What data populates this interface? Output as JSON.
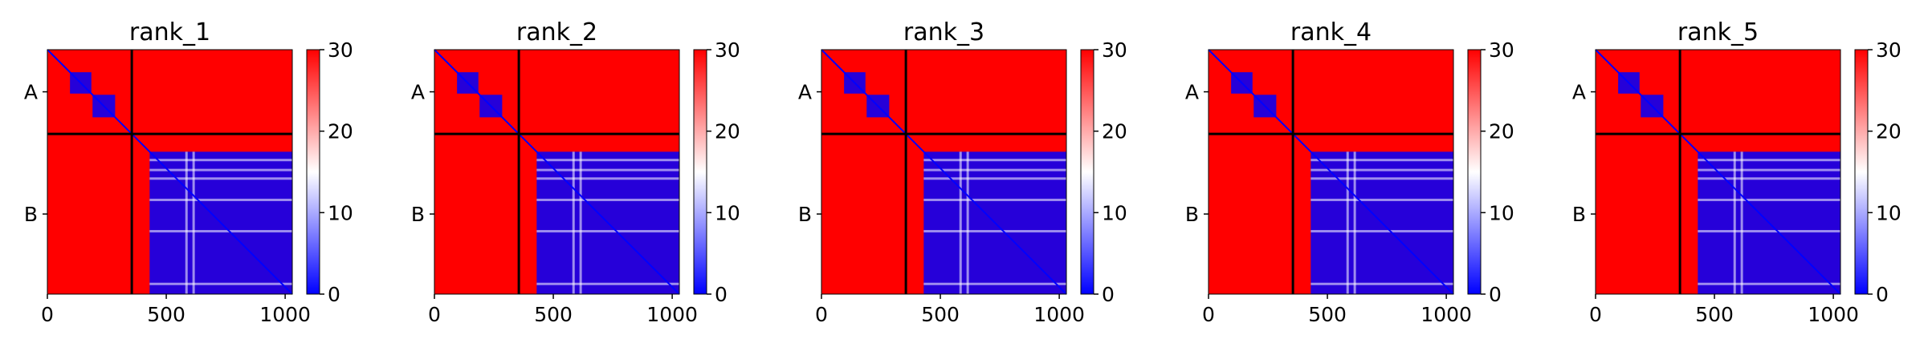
{
  "colors": {
    "low": "#0000ff",
    "mid": "#ffffff",
    "high": "#ff0000",
    "divider": "#000000"
  },
  "panels": [
    {
      "title": "rank_1"
    },
    {
      "title": "rank_2"
    },
    {
      "title": "rank_3"
    },
    {
      "title": "rank_4"
    },
    {
      "title": "rank_5"
    }
  ],
  "chart_data": {
    "type": "heatmap",
    "description_of_value": "PAE-style matrix, colormap bwr",
    "x_ticks": [
      0,
      500,
      1000
    ],
    "y_tick_labels": [
      "A",
      "B"
    ],
    "colorbar_ticks": [
      0,
      10,
      20,
      30
    ],
    "colorbar_range": [
      0,
      30
    ],
    "x_range": [
      0,
      1030
    ],
    "chain_boundary": 355,
    "chains": [
      {
        "name": "A",
        "start": 0,
        "end": 355
      },
      {
        "name": "B",
        "start": 355,
        "end": 1030
      }
    ],
    "blue_blocks": [
      {
        "x0": 95,
        "x1": 185,
        "y0": 95,
        "y1": 185
      },
      {
        "x0": 190,
        "x1": 285,
        "y0": 190,
        "y1": 285
      },
      {
        "x0": 430,
        "x1": 1030,
        "y0": 430,
        "y1": 1030
      }
    ],
    "colorbar_steps": 60
  }
}
